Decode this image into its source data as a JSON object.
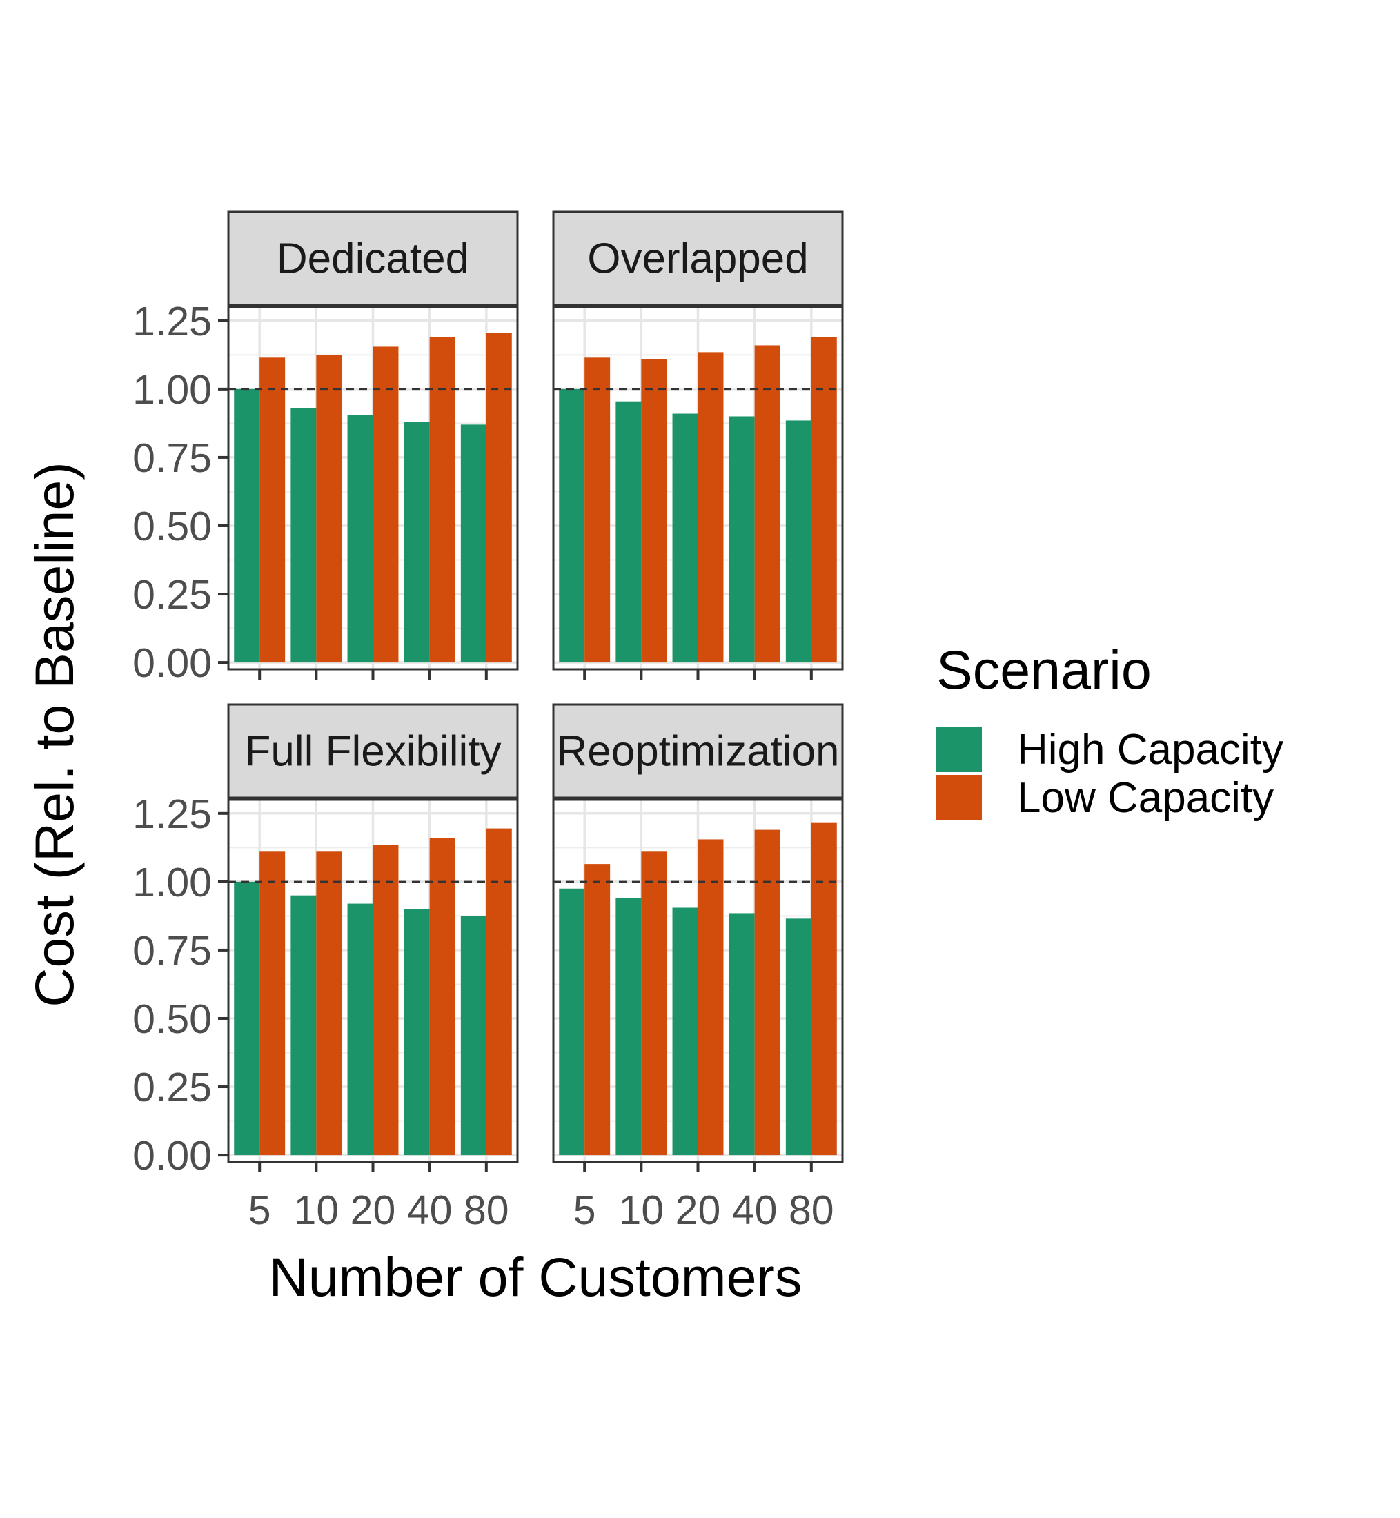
{
  "chart_data": {
    "type": "bar",
    "xlabel": "Number of Customers",
    "ylabel": "Cost (Rel. to Baseline)",
    "categories": [
      "5",
      "10",
      "20",
      "40",
      "80"
    ],
    "ylim": [
      -0.025,
      1.3
    ],
    "yticks": [
      "0.00",
      "0.25",
      "0.50",
      "0.75",
      "1.00",
      "1.25"
    ],
    "reference_line": 1.0,
    "grid": true,
    "legend": {
      "title": "Scenario",
      "position": "right",
      "entries": [
        "High Capacity",
        "Low Capacity"
      ]
    },
    "colors": {
      "High Capacity": "#1b9469",
      "Low Capacity": "#d24c0b"
    },
    "panels": [
      {
        "title": "Dedicated",
        "series": [
          {
            "name": "High Capacity",
            "values": [
              1.0,
              0.93,
              0.905,
              0.88,
              0.87
            ]
          },
          {
            "name": "Low Capacity",
            "values": [
              1.115,
              1.125,
              1.155,
              1.19,
              1.205
            ]
          }
        ]
      },
      {
        "title": "Overlapped",
        "series": [
          {
            "name": "High Capacity",
            "values": [
              1.0,
              0.955,
              0.91,
              0.9,
              0.885
            ]
          },
          {
            "name": "Low Capacity",
            "values": [
              1.115,
              1.11,
              1.135,
              1.16,
              1.19
            ]
          }
        ]
      },
      {
        "title": "Full Flexibility",
        "series": [
          {
            "name": "High Capacity",
            "values": [
              1.0,
              0.95,
              0.92,
              0.9,
              0.875
            ]
          },
          {
            "name": "Low Capacity",
            "values": [
              1.11,
              1.11,
              1.135,
              1.16,
              1.195
            ]
          }
        ]
      },
      {
        "title": "Reoptimization",
        "series": [
          {
            "name": "High Capacity",
            "values": [
              0.975,
              0.94,
              0.905,
              0.885,
              0.865
            ]
          },
          {
            "name": "Low Capacity",
            "values": [
              1.065,
              1.11,
              1.155,
              1.19,
              1.215
            ]
          }
        ]
      }
    ]
  }
}
